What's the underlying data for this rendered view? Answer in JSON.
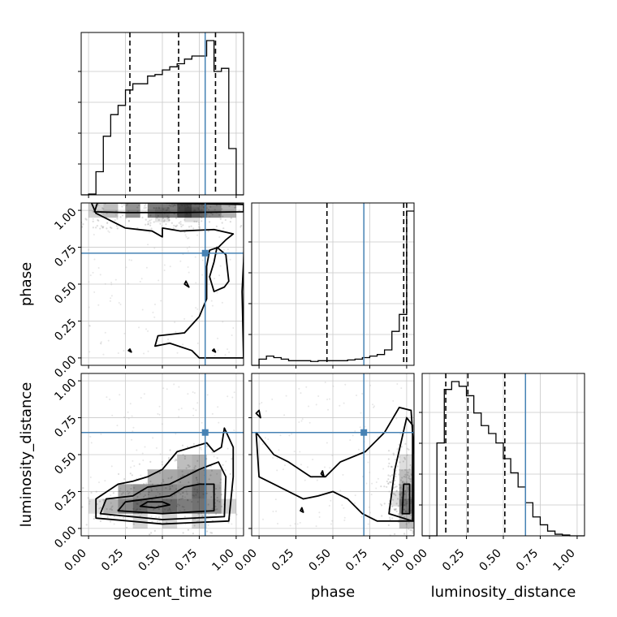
{
  "chart_data": {
    "type": "corner",
    "parameters": [
      "geocent_time",
      "phase",
      "luminosity_distance"
    ],
    "truths": [
      0.79,
      0.71,
      0.65
    ],
    "truth_color": "#4682b4",
    "line_color": "#000000",
    "tick_values": [
      0.0,
      0.25,
      0.5,
      0.75,
      1.0
    ],
    "tick_labels": [
      "0.00",
      "0.25",
      "0.50",
      "0.75",
      "1.00"
    ],
    "axis_range": [
      -0.05,
      1.05
    ],
    "grid": true,
    "histograms": [
      {
        "parameter": "geocent_time",
        "bins": [
          -0.05,
          0.0,
          0.05,
          0.1,
          0.15,
          0.2,
          0.25,
          0.3,
          0.35,
          0.4,
          0.45,
          0.5,
          0.55,
          0.6,
          0.65,
          0.7,
          0.75,
          0.8,
          0.85,
          0.9,
          0.95,
          1.0,
          1.05
        ],
        "values": [
          0,
          0.005,
          0.15,
          0.38,
          0.52,
          0.58,
          0.68,
          0.72,
          0.72,
          0.77,
          0.78,
          0.81,
          0.83,
          0.85,
          0.88,
          0.9,
          0.9,
          1.0,
          0.8,
          0.82,
          0.3,
          0
        ],
        "quantiles": [
          0.28,
          0.61,
          0.86
        ]
      },
      {
        "parameter": "phase",
        "bins": [
          -0.05,
          0.0,
          0.05,
          0.1,
          0.15,
          0.2,
          0.25,
          0.3,
          0.35,
          0.4,
          0.45,
          0.5,
          0.55,
          0.6,
          0.65,
          0.7,
          0.75,
          0.8,
          0.85,
          0.9,
          0.95,
          1.0,
          1.05
        ],
        "values": [
          0,
          0.04,
          0.06,
          0.05,
          0.04,
          0.03,
          0.03,
          0.03,
          0.025,
          0.03,
          0.03,
          0.03,
          0.03,
          0.035,
          0.04,
          0.05,
          0.06,
          0.07,
          0.1,
          0.22,
          0.33,
          1.0
        ],
        "quantiles": [
          0.46,
          0.98,
          1.0
        ]
      },
      {
        "parameter": "luminosity_distance",
        "bins": [
          -0.05,
          0.0,
          0.05,
          0.1,
          0.15,
          0.2,
          0.25,
          0.3,
          0.35,
          0.4,
          0.45,
          0.5,
          0.55,
          0.6,
          0.65,
          0.7,
          0.75,
          0.8,
          0.85,
          0.9,
          0.95,
          1.0,
          1.05
        ],
        "values": [
          0,
          0,
          0.59,
          0.93,
          0.98,
          0.95,
          0.89,
          0.78,
          0.7,
          0.65,
          0.59,
          0.49,
          0.4,
          0.31,
          0.21,
          0.12,
          0.07,
          0.03,
          0.01,
          0.005,
          0,
          0
        ],
        "quantiles": [
          0.11,
          0.26,
          0.51
        ]
      }
    ],
    "pairs": [
      {
        "x": "geocent_time",
        "y": "phase",
        "density_cells": [
          [
            0.15,
            1.0,
            0.3
          ],
          [
            0.3,
            1.0,
            0.5
          ],
          [
            0.45,
            1.0,
            0.6
          ],
          [
            0.55,
            1.0,
            0.6
          ],
          [
            0.65,
            1.0,
            0.85
          ],
          [
            0.75,
            1.0,
            0.7
          ],
          [
            0.85,
            1.0,
            0.55
          ],
          [
            0.05,
            1.0,
            0.2
          ],
          [
            0.95,
            1.0,
            0.35
          ],
          [
            0.5,
            0.97,
            0.12
          ],
          [
            0.7,
            0.97,
            0.15
          ]
        ],
        "contours": [
          [
            [
              0.06,
              1.05
            ],
            [
              0.5,
              1.05
            ],
            [
              1.05,
              1.04
            ],
            [
              1.05,
              0.99
            ],
            [
              0.6,
              0.985
            ],
            [
              0.25,
              0.985
            ],
            [
              0.04,
              0.99
            ]
          ],
          [
            [
              0.02,
              1.05
            ],
            [
              0.5,
              1.06
            ],
            [
              1.06,
              1.04
            ],
            [
              1.05,
              0.65
            ],
            [
              1.04,
              0.45
            ],
            [
              1.05,
              0.0
            ],
            [
              0.75,
              0.0
            ],
            [
              0.7,
              0.05
            ],
            [
              0.55,
              0.1
            ],
            [
              0.45,
              0.08
            ],
            [
              0.47,
              0.15
            ],
            [
              0.65,
              0.17
            ],
            [
              0.75,
              0.28
            ],
            [
              0.8,
              0.4
            ],
            [
              0.8,
              0.62
            ],
            [
              0.82,
              0.73
            ],
            [
              0.88,
              0.75
            ],
            [
              0.93,
              0.8
            ],
            [
              0.98,
              0.84
            ],
            [
              0.85,
              0.87
            ],
            [
              0.62,
              0.86
            ],
            [
              0.5,
              0.88
            ],
            [
              0.5,
              0.82
            ],
            [
              0.43,
              0.86
            ],
            [
              0.25,
              0.88
            ],
            [
              0.15,
              0.93
            ],
            [
              0.05,
              0.98
            ],
            [
              0.02,
              1.05
            ]
          ],
          [
            [
              0.82,
              0.55
            ],
            [
              0.85,
              0.45
            ],
            [
              0.92,
              0.48
            ],
            [
              0.95,
              0.52
            ],
            [
              0.93,
              0.7
            ],
            [
              0.87,
              0.75
            ],
            [
              0.85,
              0.65
            ],
            [
              0.82,
              0.55
            ]
          ],
          [
            [
              0.65,
              0.5
            ],
            [
              0.68,
              0.48
            ],
            [
              0.66,
              0.52
            ],
            [
              0.65,
              0.5
            ]
          ],
          [
            [
              0.27,
              0.05
            ],
            [
              0.29,
              0.04
            ],
            [
              0.28,
              0.06
            ],
            [
              0.27,
              0.05
            ]
          ],
          [
            [
              0.84,
              0.05
            ],
            [
              0.86,
              0.04
            ],
            [
              0.85,
              0.06
            ],
            [
              0.84,
              0.05
            ]
          ]
        ]
      },
      {
        "x": "geocent_time",
        "y": "luminosity_distance",
        "density_cells": [
          [
            0.15,
            0.15,
            0.35
          ],
          [
            0.25,
            0.15,
            0.55
          ],
          [
            0.35,
            0.15,
            0.7
          ],
          [
            0.45,
            0.15,
            0.6
          ],
          [
            0.55,
            0.15,
            0.7
          ],
          [
            0.65,
            0.15,
            0.6
          ],
          [
            0.75,
            0.15,
            0.65
          ],
          [
            0.85,
            0.15,
            0.5
          ],
          [
            0.25,
            0.25,
            0.4
          ],
          [
            0.35,
            0.25,
            0.5
          ],
          [
            0.45,
            0.25,
            0.55
          ],
          [
            0.55,
            0.25,
            0.55
          ],
          [
            0.65,
            0.25,
            0.5
          ],
          [
            0.75,
            0.25,
            0.7
          ],
          [
            0.85,
            0.25,
            0.45
          ],
          [
            0.45,
            0.35,
            0.35
          ],
          [
            0.55,
            0.35,
            0.4
          ],
          [
            0.65,
            0.35,
            0.45
          ],
          [
            0.75,
            0.35,
            0.55
          ],
          [
            0.85,
            0.35,
            0.4
          ],
          [
            0.65,
            0.45,
            0.3
          ],
          [
            0.75,
            0.45,
            0.35
          ],
          [
            0.05,
            0.15,
            0.15
          ],
          [
            0.95,
            0.15,
            0.2
          ],
          [
            0.35,
            0.05,
            0.2
          ],
          [
            0.55,
            0.05,
            0.2
          ],
          [
            0.75,
            0.05,
            0.2
          ]
        ],
        "contours": [
          [
            [
              0.05,
              0.07
            ],
            [
              0.5,
              0.03
            ],
            [
              0.95,
              0.05
            ],
            [
              0.98,
              0.35
            ],
            [
              0.98,
              0.55
            ],
            [
              0.92,
              0.68
            ],
            [
              0.9,
              0.55
            ],
            [
              0.85,
              0.52
            ],
            [
              0.8,
              0.58
            ],
            [
              0.7,
              0.55
            ],
            [
              0.6,
              0.52
            ],
            [
              0.5,
              0.4
            ],
            [
              0.4,
              0.35
            ],
            [
              0.3,
              0.32
            ],
            [
              0.2,
              0.3
            ],
            [
              0.05,
              0.2
            ],
            [
              0.05,
              0.07
            ]
          ],
          [
            [
              0.08,
              0.1
            ],
            [
              0.5,
              0.06
            ],
            [
              0.92,
              0.08
            ],
            [
              0.93,
              0.35
            ],
            [
              0.88,
              0.45
            ],
            [
              0.75,
              0.4
            ],
            [
              0.65,
              0.35
            ],
            [
              0.55,
              0.3
            ],
            [
              0.4,
              0.28
            ],
            [
              0.3,
              0.22
            ],
            [
              0.12,
              0.2
            ],
            [
              0.08,
              0.1
            ]
          ],
          [
            [
              0.2,
              0.12
            ],
            [
              0.5,
              0.1
            ],
            [
              0.85,
              0.12
            ],
            [
              0.85,
              0.3
            ],
            [
              0.75,
              0.3
            ],
            [
              0.65,
              0.28
            ],
            [
              0.55,
              0.22
            ],
            [
              0.4,
              0.2
            ],
            [
              0.25,
              0.18
            ],
            [
              0.2,
              0.12
            ]
          ],
          [
            [
              0.35,
              0.15
            ],
            [
              0.45,
              0.14
            ],
            [
              0.55,
              0.16
            ],
            [
              0.5,
              0.18
            ],
            [
              0.4,
              0.18
            ],
            [
              0.35,
              0.15
            ]
          ]
        ]
      },
      {
        "x": "phase",
        "y": "luminosity_distance",
        "density_cells": [
          [
            1.0,
            0.15,
            0.6
          ],
          [
            1.0,
            0.25,
            0.45
          ],
          [
            1.0,
            0.05,
            0.3
          ],
          [
            1.0,
            0.35,
            0.3
          ],
          [
            0.95,
            0.2,
            0.15
          ],
          [
            1.0,
            0.45,
            0.15
          ]
        ],
        "contours": [
          [
            [
              -0.02,
              0.65
            ],
            [
              0.1,
              0.5
            ],
            [
              0.2,
              0.45
            ],
            [
              0.35,
              0.35
            ],
            [
              0.45,
              0.35
            ],
            [
              0.55,
              0.45
            ],
            [
              0.72,
              0.52
            ],
            [
              0.85,
              0.65
            ],
            [
              0.95,
              0.82
            ],
            [
              1.03,
              0.8
            ],
            [
              1.05,
              0.5
            ],
            [
              1.05,
              0.05
            ],
            [
              0.8,
              0.05
            ],
            [
              0.7,
              0.1
            ],
            [
              0.6,
              0.2
            ],
            [
              0.5,
              0.25
            ],
            [
              0.4,
              0.22
            ],
            [
              0.3,
              0.2
            ],
            [
              0.2,
              0.25
            ],
            [
              0.1,
              0.3
            ],
            [
              0.0,
              0.35
            ],
            [
              -0.02,
              0.65
            ]
          ],
          [
            [
              0.88,
              0.1
            ],
            [
              0.92,
              0.4
            ],
            [
              1.0,
              0.75
            ],
            [
              1.04,
              0.7
            ],
            [
              1.04,
              0.05
            ],
            [
              0.88,
              0.1
            ]
          ],
          [
            [
              0.97,
              0.1
            ],
            [
              0.98,
              0.3
            ],
            [
              1.02,
              0.3
            ],
            [
              1.02,
              0.1
            ],
            [
              0.97,
              0.1
            ]
          ],
          [
            [
              0.42,
              0.37
            ],
            [
              0.44,
              0.35
            ],
            [
              0.43,
              0.39
            ],
            [
              0.42,
              0.37
            ]
          ],
          [
            [
              0.28,
              0.12
            ],
            [
              0.3,
              0.11
            ],
            [
              0.29,
              0.14
            ],
            [
              0.28,
              0.12
            ]
          ],
          [
            [
              -0.02,
              0.78
            ],
            [
              0.01,
              0.75
            ],
            [
              0.0,
              0.8
            ],
            [
              -0.02,
              0.78
            ]
          ]
        ]
      }
    ]
  }
}
